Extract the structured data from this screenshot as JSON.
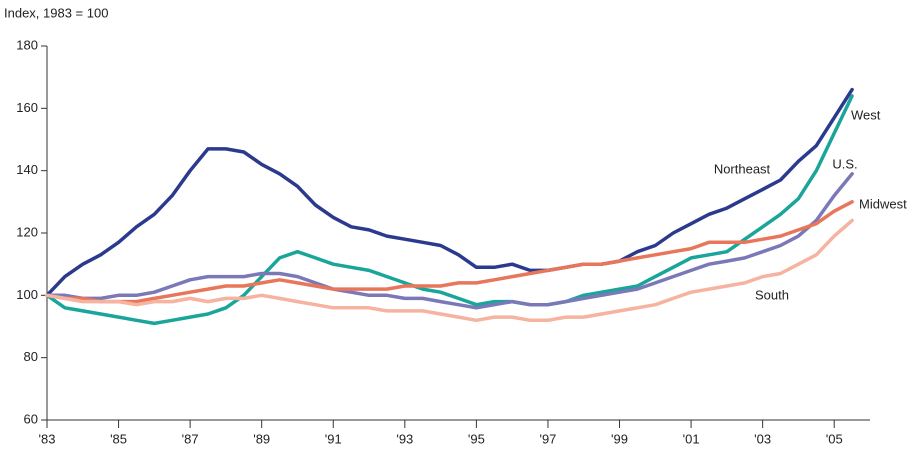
{
  "chart_data": {
    "type": "line",
    "ylabel": "Index, 1983 = 100",
    "x": [
      1983,
      1983.5,
      1984,
      1984.5,
      1985,
      1985.5,
      1986,
      1986.5,
      1987,
      1987.5,
      1988,
      1988.5,
      1989,
      1989.5,
      1990,
      1990.5,
      1991,
      1991.5,
      1992,
      1992.5,
      1993,
      1993.5,
      1994,
      1994.5,
      1995,
      1995.5,
      1996,
      1996.5,
      1997,
      1997.5,
      1998,
      1998.5,
      1999,
      1999.5,
      2000,
      2000.5,
      2001,
      2001.5,
      2002,
      2002.5,
      2003,
      2003.5,
      2004,
      2004.5,
      2005,
      2005.5
    ],
    "series": [
      {
        "name": "Northeast",
        "color": "#2b3a8c",
        "values": [
          100,
          106,
          110,
          113,
          117,
          122,
          126,
          132,
          140,
          147,
          147,
          146,
          142,
          139,
          135,
          129,
          125,
          122,
          121,
          119,
          118,
          117,
          116,
          113,
          109,
          109,
          110,
          108,
          108,
          109,
          110,
          110,
          111,
          114,
          116,
          120,
          123,
          126,
          128,
          131,
          134,
          137,
          143,
          148,
          157,
          166
        ]
      },
      {
        "name": "West",
        "color": "#1aa59a",
        "values": [
          100,
          96,
          95,
          94,
          93,
          92,
          91,
          92,
          93,
          94,
          96,
          100,
          106,
          112,
          114,
          112,
          110,
          109,
          108,
          106,
          104,
          102,
          101,
          99,
          97,
          98,
          98,
          97,
          97,
          98,
          100,
          101,
          102,
          103,
          106,
          109,
          112,
          113,
          114,
          118,
          122,
          126,
          131,
          140,
          152,
          164
        ]
      },
      {
        "name": "U.S.",
        "color": "#7b78b8",
        "values": [
          100,
          100,
          99,
          99,
          100,
          100,
          101,
          103,
          105,
          106,
          106,
          106,
          107,
          107,
          106,
          104,
          102,
          101,
          100,
          100,
          99,
          99,
          98,
          97,
          96,
          97,
          98,
          97,
          97,
          98,
          99,
          100,
          101,
          102,
          104,
          106,
          108,
          110,
          111,
          112,
          114,
          116,
          119,
          124,
          132,
          139
        ]
      },
      {
        "name": "Midwest",
        "color": "#e8765a",
        "values": [
          100,
          99,
          99,
          98,
          98,
          98,
          99,
          100,
          101,
          102,
          103,
          103,
          104,
          105,
          104,
          103,
          102,
          102,
          102,
          102,
          103,
          103,
          103,
          104,
          104,
          105,
          106,
          107,
          108,
          109,
          110,
          110,
          111,
          112,
          113,
          114,
          115,
          117,
          117,
          117,
          118,
          119,
          121,
          123,
          127,
          130
        ]
      },
      {
        "name": "South",
        "color": "#f5b3a0",
        "values": [
          100,
          99,
          98,
          98,
          98,
          97,
          98,
          98,
          99,
          98,
          99,
          99,
          100,
          99,
          98,
          97,
          96,
          96,
          96,
          95,
          95,
          95,
          94,
          93,
          92,
          93,
          93,
          92,
          92,
          93,
          93,
          94,
          95,
          96,
          97,
          99,
          101,
          102,
          103,
          104,
          106,
          107,
          110,
          113,
          119,
          124
        ]
      }
    ],
    "xlim": [
      1983,
      2006
    ],
    "xticks": [
      {
        "value": 1983,
        "label": "'83"
      },
      {
        "value": 1985,
        "label": "'85"
      },
      {
        "value": 1987,
        "label": "'87"
      },
      {
        "value": 1989,
        "label": "'89"
      },
      {
        "value": 1991,
        "label": "'91"
      },
      {
        "value": 1993,
        "label": "'93"
      },
      {
        "value": 1995,
        "label": "'95"
      },
      {
        "value": 1997,
        "label": "'97"
      },
      {
        "value": 1999,
        "label": "'99"
      },
      {
        "value": 2001,
        "label": "'01"
      },
      {
        "value": 2003,
        "label": "'03"
      },
      {
        "value": 2005,
        "label": "'05"
      }
    ],
    "ylim": [
      60,
      180
    ],
    "yticks": [
      60,
      80,
      100,
      120,
      140,
      160,
      180
    ],
    "grid": false
  }
}
